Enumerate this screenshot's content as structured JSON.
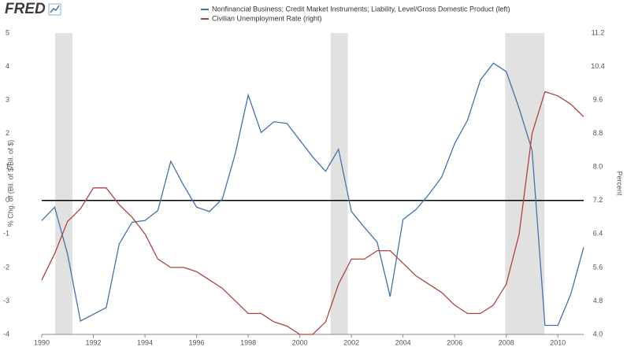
{
  "logo": "FRED",
  "chart_data": {
    "type": "line",
    "y_label": "% Chg. of (Bil. of $/Bil. of $)",
    "y2_label": "Percent",
    "x": [
      1990,
      1990.5,
      1991,
      1991.5,
      1992,
      1992.5,
      1993,
      1993.5,
      1994,
      1994.5,
      1995,
      1995.5,
      1996,
      1996.5,
      1997,
      1997.5,
      1998,
      1998.5,
      1999,
      1999.5,
      2000,
      2000.5,
      2001,
      2001.5,
      2002,
      2002.5,
      2003,
      2003.5,
      2004,
      2004.5,
      2005,
      2005.5,
      2006,
      2006.5,
      2007,
      2007.5,
      2008,
      2008.5,
      2009,
      2009.5,
      2010,
      2010.5,
      2011
    ],
    "series": [
      {
        "name": "Nonfinancial Business; Credit Market Instruments; Liability, Level/Gross Domestic Product (left)",
        "color": "#4572a7",
        "axis": "y",
        "values": [
          -0.6,
          -0.2,
          -1.6,
          -3.6,
          -3.4,
          -3.2,
          -1.3,
          -0.65,
          -0.6,
          -0.3,
          1.17,
          0.45,
          -0.2,
          -0.33,
          0.05,
          1.4,
          3.15,
          2.03,
          2.35,
          2.3,
          1.8,
          1.3,
          0.87,
          1.53,
          -0.33,
          -0.8,
          -1.25,
          -2.87,
          -0.57,
          -0.27,
          0.18,
          0.7,
          1.7,
          2.4,
          3.6,
          4.1,
          3.85,
          2.75,
          1.5,
          -3.73,
          -3.73,
          -2.8,
          -1.4
        ]
      },
      {
        "name": "Civilian Unemployment Rate (right)",
        "color": "#aa4643",
        "axis": "y2",
        "values": [
          5.3,
          5.93,
          6.7,
          7.0,
          7.5,
          7.5,
          7.1,
          6.8,
          6.4,
          5.8,
          5.6,
          5.6,
          5.5,
          5.3,
          5.1,
          4.8,
          4.5,
          4.5,
          4.3,
          4.2,
          4.0,
          4.0,
          4.3,
          5.2,
          5.8,
          5.8,
          6.0,
          6.0,
          5.7,
          5.4,
          5.2,
          5.0,
          4.7,
          4.5,
          4.5,
          4.7,
          5.2,
          6.4,
          8.8,
          9.8,
          9.7,
          9.5,
          9.2
        ]
      }
    ],
    "recessions": [
      [
        1990.52,
        1991.19
      ],
      [
        2001.19,
        2001.86
      ],
      [
        2007.96,
        2009.48
      ]
    ],
    "recession_color": "#e1e1e1",
    "xlim": [
      1990,
      2011
    ],
    "xticks": [
      1990,
      1992,
      1994,
      1996,
      1998,
      2000,
      2002,
      2004,
      2006,
      2008,
      2010
    ],
    "ylim": [
      -4,
      5
    ],
    "yticks": [
      5,
      4,
      3,
      2,
      1,
      0,
      -1,
      -2,
      -3,
      -4
    ],
    "y2lim": [
      4.0,
      11.2
    ],
    "y2ticks": [
      {
        "value": 11.2,
        "label": "11.2"
      },
      {
        "value": 10.4,
        "label": "10.4"
      },
      {
        "value": 9.6,
        "label": "9.6"
      },
      {
        "value": 8.8,
        "label": "8.8"
      },
      {
        "value": 8.0,
        "label": "8.0"
      },
      {
        "value": 7.2,
        "label": "7.2"
      },
      {
        "value": 6.4,
        "label": "6.4"
      },
      {
        "value": 5.6,
        "label": "5.6"
      },
      {
        "value": 4.8,
        "label": "4.8"
      },
      {
        "value": 4.0,
        "label": "4.0"
      }
    ],
    "zero_line": true,
    "grid": false
  }
}
